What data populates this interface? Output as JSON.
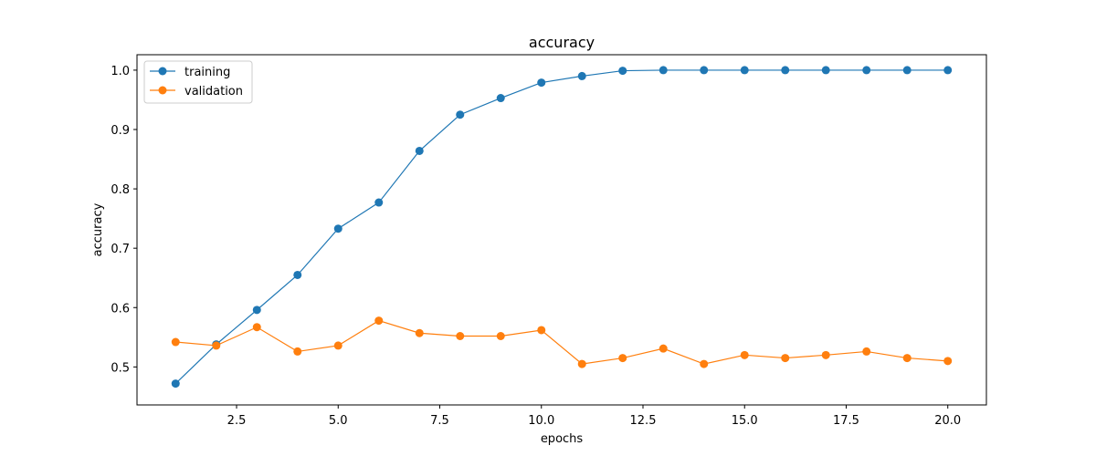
{
  "chart_data": {
    "type": "line",
    "title": "accuracy",
    "xlabel": "epochs",
    "ylabel": "accuracy",
    "xlim": [
      0.05,
      20.95
    ],
    "ylim": [
      0.436,
      1.026
    ],
    "x_ticks": [
      2.5,
      5.0,
      7.5,
      10.0,
      12.5,
      15.0,
      17.5,
      20.0
    ],
    "x_tick_labels": [
      "2.5",
      "5.0",
      "7.5",
      "10.0",
      "12.5",
      "15.0",
      "17.5",
      "20.0"
    ],
    "y_ticks": [
      0.5,
      0.6,
      0.7,
      0.8,
      0.9,
      1.0
    ],
    "y_tick_labels": [
      "0.5",
      "0.6",
      "0.7",
      "0.8",
      "0.9",
      "1.0"
    ],
    "grid": false,
    "legend_position": "upper-left",
    "x": [
      1,
      2,
      3,
      4,
      5,
      6,
      7,
      8,
      9,
      10,
      11,
      12,
      13,
      14,
      15,
      16,
      17,
      18,
      19,
      20
    ],
    "series": [
      {
        "name": "training",
        "color": "#1f77b4",
        "values": [
          0.472,
          0.538,
          0.596,
          0.655,
          0.733,
          0.777,
          0.864,
          0.925,
          0.953,
          0.979,
          0.99,
          0.999,
          1.0,
          1.0,
          1.0,
          1.0,
          1.0,
          1.0,
          1.0,
          1.0
        ]
      },
      {
        "name": "validation",
        "color": "#ff7f0e",
        "values": [
          0.542,
          0.536,
          0.567,
          0.526,
          0.536,
          0.578,
          0.557,
          0.552,
          0.552,
          0.562,
          0.505,
          0.515,
          0.531,
          0.505,
          0.52,
          0.515,
          0.52,
          0.526,
          0.515,
          0.51
        ]
      }
    ]
  }
}
